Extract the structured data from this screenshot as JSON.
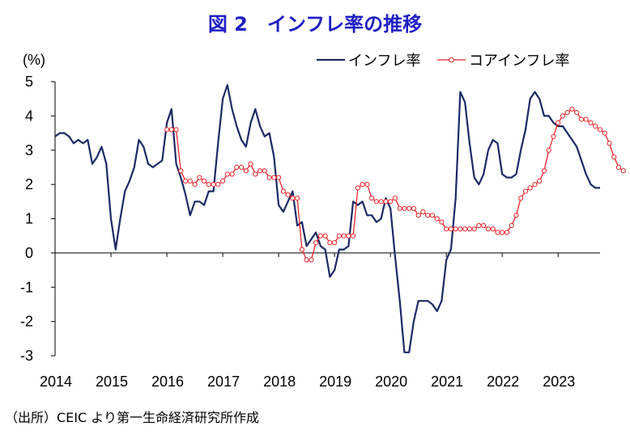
{
  "title": "図 2　インフレ率の推移",
  "source": "（出所）CEIC より第一生命経済研究所作成",
  "chart_data": {
    "type": "line",
    "title": "図 2　インフレ率の推移",
    "ylabel": "(%)",
    "xlabel": "",
    "ylim": [
      -3,
      5
    ],
    "yticks": [
      "5",
      "4",
      "3",
      "2",
      "1",
      "0",
      "-1",
      "-2",
      "-3"
    ],
    "xticks": [
      "2014",
      "2015",
      "2016",
      "2017",
      "2018",
      "2019",
      "2020",
      "2021",
      "2022",
      "2023"
    ],
    "x_start": "2014-01",
    "x_freq": "monthly",
    "grid": false,
    "legend_position": "top-right",
    "series": [
      {
        "name": "インフレ率",
        "color": "#1b2a66",
        "marker": "none",
        "values": [
          3.4,
          3.5,
          3.5,
          3.4,
          3.2,
          3.3,
          3.2,
          3.3,
          2.6,
          2.8,
          3.1,
          2.6,
          1.0,
          0.1,
          1.0,
          1.8,
          2.1,
          2.5,
          3.3,
          3.1,
          2.6,
          2.5,
          2.6,
          2.7,
          3.8,
          4.2,
          2.6,
          2.2,
          1.7,
          1.1,
          1.5,
          1.5,
          1.4,
          1.8,
          1.8,
          3.2,
          4.5,
          4.9,
          4.2,
          3.7,
          3.3,
          3.1,
          3.8,
          4.2,
          3.7,
          3.4,
          3.5,
          2.8,
          1.4,
          1.2,
          1.5,
          1.8,
          0.8,
          0.9,
          0.2,
          0.4,
          0.6,
          0.2,
          0.1,
          -0.7,
          -0.5,
          0.1,
          0.1,
          0.2,
          1.5,
          1.4,
          1.5,
          1.1,
          1.1,
          0.9,
          1.0,
          1.6,
          1.3,
          -0.1,
          -1.4,
          -2.9,
          -2.9,
          -2.0,
          -1.4,
          -1.4,
          -1.4,
          -1.5,
          -1.7,
          -1.4,
          -0.2,
          0.1,
          1.6,
          4.7,
          4.4,
          3.2,
          2.2,
          2.0,
          2.3,
          3.0,
          3.3,
          3.2,
          2.3,
          2.2,
          2.2,
          2.3,
          3.0,
          3.6,
          4.5,
          4.7,
          4.5,
          4.0,
          4.0,
          3.8,
          3.7,
          3.7,
          3.5,
          3.3,
          3.1,
          2.7,
          2.3,
          2.0,
          1.9,
          1.9
        ]
      },
      {
        "name": "コアインフレ率",
        "color": "#e8262a",
        "marker": "circle",
        "start": "2016-01",
        "values": [
          3.6,
          3.6,
          3.6,
          2.4,
          2.1,
          2.1,
          2.0,
          2.2,
          2.1,
          2.0,
          2.0,
          2.0,
          2.1,
          2.3,
          2.3,
          2.5,
          2.5,
          2.4,
          2.6,
          2.3,
          2.4,
          2.4,
          2.2,
          2.2,
          2.2,
          1.8,
          1.7,
          1.6,
          1.6,
          0.1,
          -0.2,
          -0.2,
          0.3,
          0.5,
          0.5,
          0.3,
          0.3,
          0.5,
          0.5,
          0.5,
          0.5,
          1.9,
          2.0,
          2.0,
          1.6,
          1.5,
          1.5,
          1.5,
          1.5,
          1.6,
          1.3,
          1.3,
          1.3,
          1.3,
          1.1,
          1.2,
          1.1,
          1.1,
          1.0,
          0.9,
          0.7,
          0.7,
          0.7,
          0.7,
          0.7,
          0.7,
          0.7,
          0.8,
          0.8,
          0.7,
          0.7,
          0.6,
          0.6,
          0.6,
          0.8,
          1.1,
          1.6,
          1.8,
          1.9,
          2.0,
          2.1,
          2.4,
          3.0,
          3.4,
          3.8,
          4.0,
          4.1,
          4.2,
          4.1,
          3.9,
          3.9,
          3.8,
          3.7,
          3.6,
          3.5,
          3.2,
          2.8,
          2.5,
          2.4
        ]
      }
    ]
  }
}
